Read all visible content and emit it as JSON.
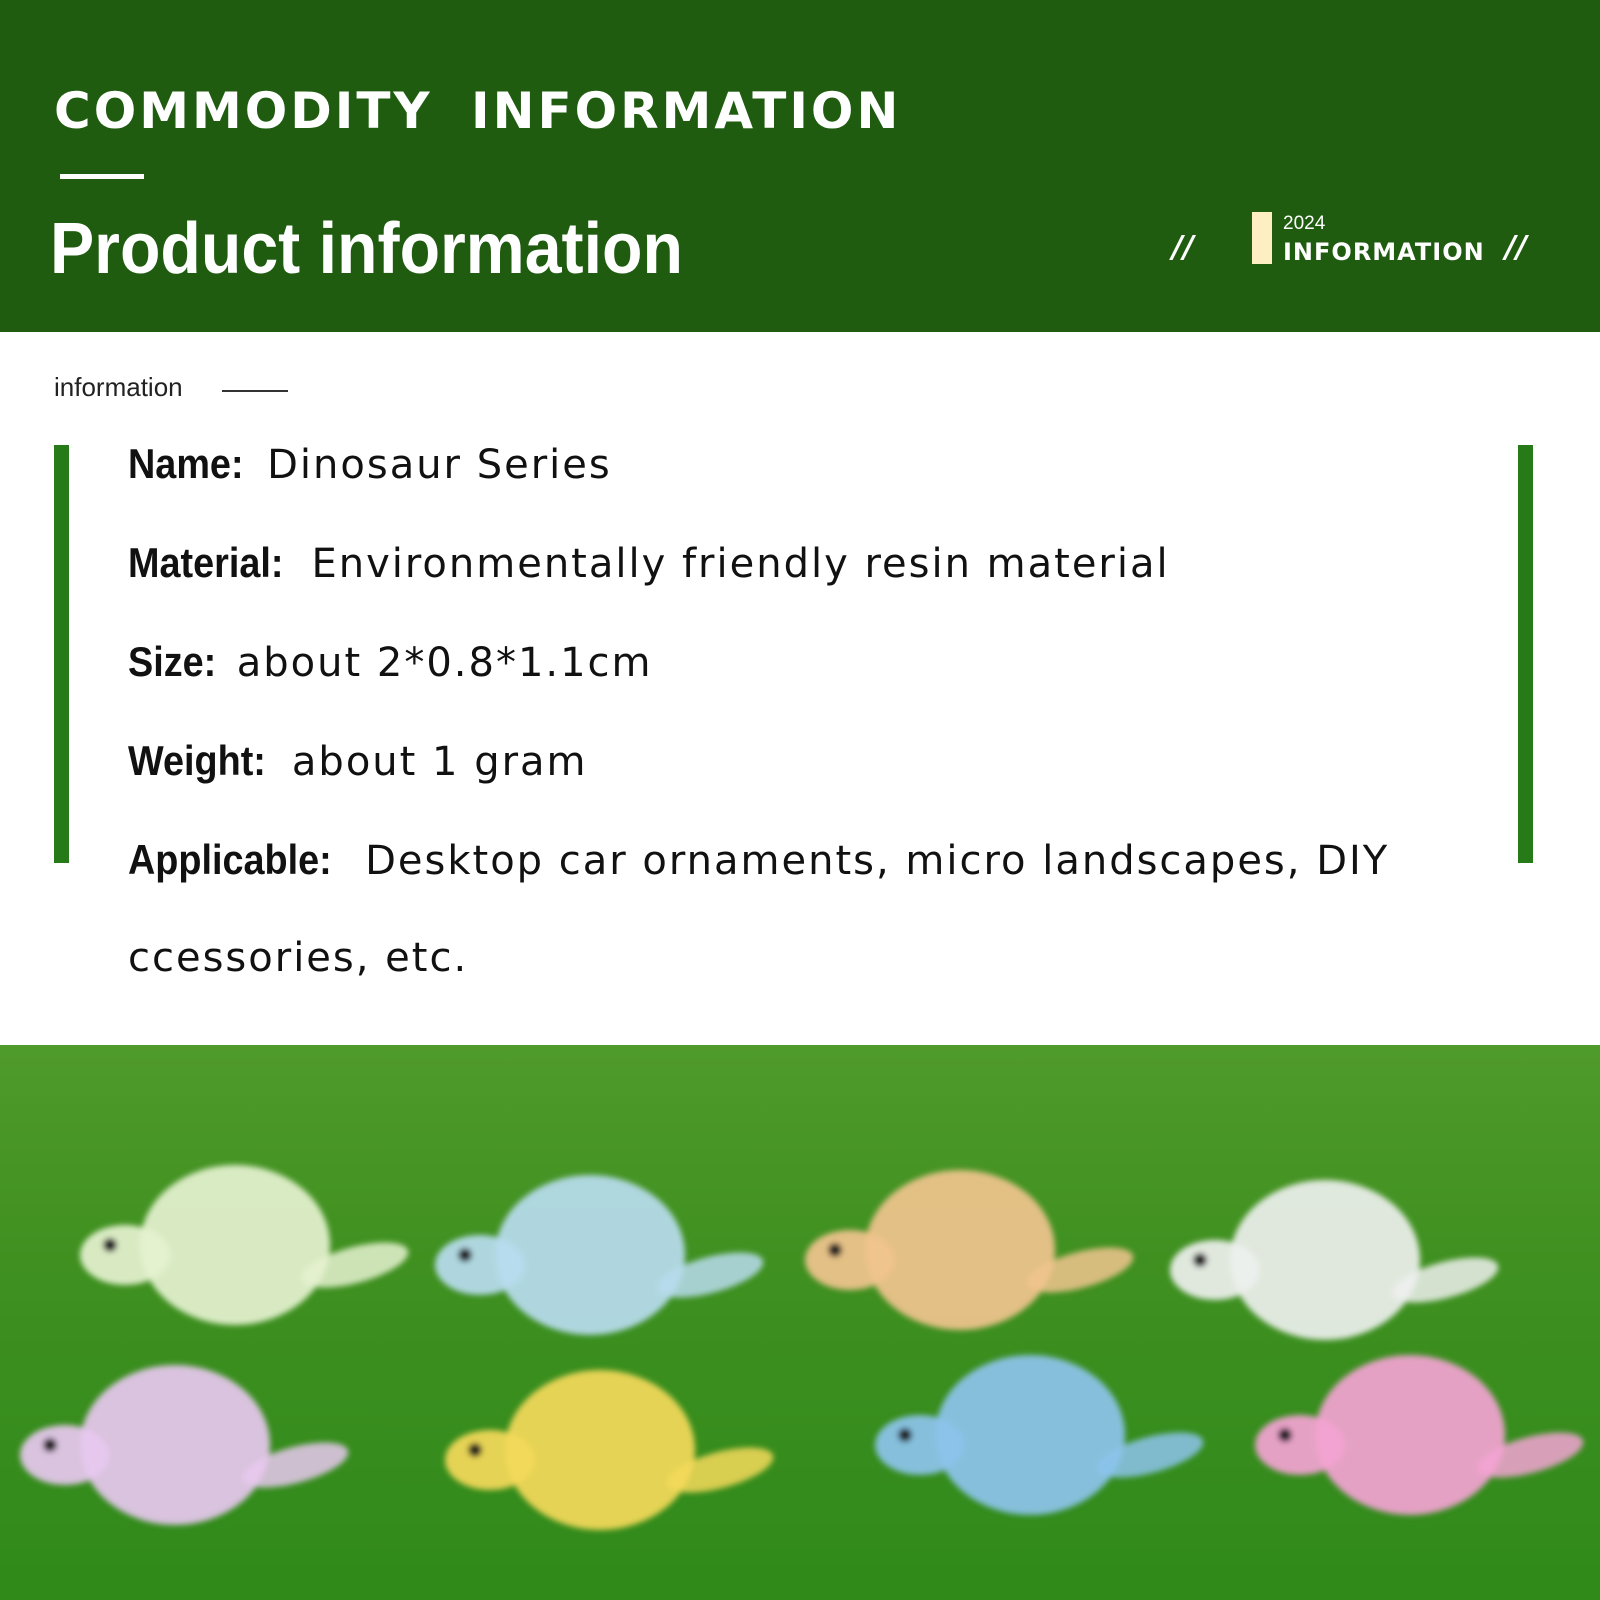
{
  "header": {
    "heading_en": "COMMODITY INFORMATION",
    "title": "Product information",
    "badge_year": "2024",
    "badge_label": "INFORMATION",
    "slash_left": "//",
    "slash_right": "//",
    "background_color": "#1f5c10"
  },
  "section_label": "information",
  "details": [
    {
      "label": "Name:",
      "value": "Dinosaur Series"
    },
    {
      "label": "Material:",
      "value": "Environmentally friendly resin material"
    },
    {
      "label": "Size:",
      "value": "about 2*0.8*1.1cm"
    },
    {
      "label": "Weight:",
      "value": "about 1 gram"
    },
    {
      "label": "Applicable:",
      "value": "Desktop car ornaments, micro landscapes, DIY"
    }
  ],
  "details_continuation": "ccessories, etc.",
  "accent_color": "#267a18",
  "photo": {
    "dinosaur_colors": [
      "#e6f2d0",
      "#b8dcef",
      "#f1c48e",
      "#eef0ee",
      "#e7c8ef",
      "#f4d95a",
      "#8cc3ec",
      "#f3a3d3"
    ]
  }
}
